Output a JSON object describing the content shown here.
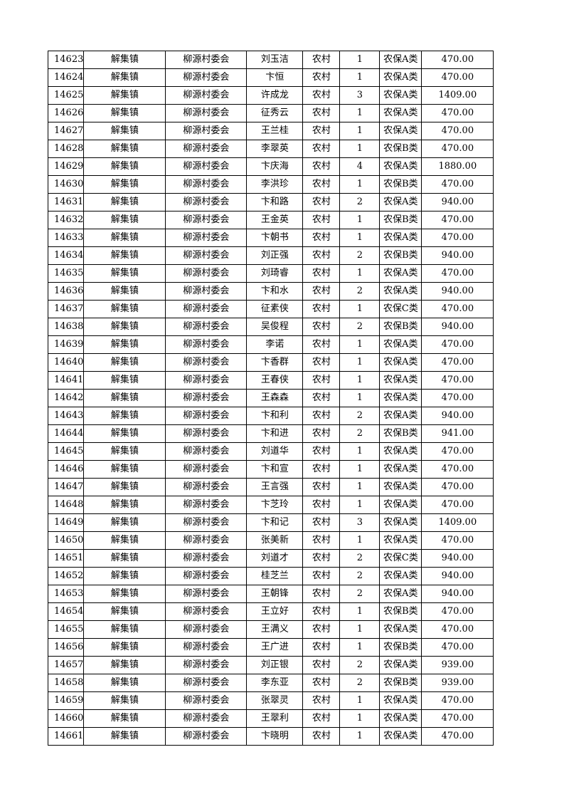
{
  "table": {
    "rows": [
      [
        "14623",
        "解集镇",
        "柳源村委会",
        "刘玉洁",
        "农村",
        "1",
        "农保A类",
        "470.00"
      ],
      [
        "14624",
        "解集镇",
        "柳源村委会",
        "卞恒",
        "农村",
        "1",
        "农保A类",
        "470.00"
      ],
      [
        "14625",
        "解集镇",
        "柳源村委会",
        "许成龙",
        "农村",
        "3",
        "农保A类",
        "1409.00"
      ],
      [
        "14626",
        "解集镇",
        "柳源村委会",
        "征秀云",
        "农村",
        "1",
        "农保A类",
        "470.00"
      ],
      [
        "14627",
        "解集镇",
        "柳源村委会",
        "王兰桂",
        "农村",
        "1",
        "农保A类",
        "470.00"
      ],
      [
        "14628",
        "解集镇",
        "柳源村委会",
        "李翠英",
        "农村",
        "1",
        "农保B类",
        "470.00"
      ],
      [
        "14629",
        "解集镇",
        "柳源村委会",
        "卞庆海",
        "农村",
        "4",
        "农保A类",
        "1880.00"
      ],
      [
        "14630",
        "解集镇",
        "柳源村委会",
        "李洪珍",
        "农村",
        "1",
        "农保B类",
        "470.00"
      ],
      [
        "14631",
        "解集镇",
        "柳源村委会",
        "卞和路",
        "农村",
        "2",
        "农保A类",
        "940.00"
      ],
      [
        "14632",
        "解集镇",
        "柳源村委会",
        "王金英",
        "农村",
        "1",
        "农保B类",
        "470.00"
      ],
      [
        "14633",
        "解集镇",
        "柳源村委会",
        "卞朝书",
        "农村",
        "1",
        "农保A类",
        "470.00"
      ],
      [
        "14634",
        "解集镇",
        "柳源村委会",
        "刘正强",
        "农村",
        "2",
        "农保B类",
        "940.00"
      ],
      [
        "14635",
        "解集镇",
        "柳源村委会",
        "刘琦睿",
        "农村",
        "1",
        "农保A类",
        "470.00"
      ],
      [
        "14636",
        "解集镇",
        "柳源村委会",
        "卞和水",
        "农村",
        "2",
        "农保A类",
        "940.00"
      ],
      [
        "14637",
        "解集镇",
        "柳源村委会",
        "征素侠",
        "农村",
        "1",
        "农保C类",
        "470.00"
      ],
      [
        "14638",
        "解集镇",
        "柳源村委会",
        "吴俊程",
        "农村",
        "2",
        "农保B类",
        "940.00"
      ],
      [
        "14639",
        "解集镇",
        "柳源村委会",
        "李诺",
        "农村",
        "1",
        "农保A类",
        "470.00"
      ],
      [
        "14640",
        "解集镇",
        "柳源村委会",
        "卞香群",
        "农村",
        "1",
        "农保A类",
        "470.00"
      ],
      [
        "14641",
        "解集镇",
        "柳源村委会",
        "王春侠",
        "农村",
        "1",
        "农保A类",
        "470.00"
      ],
      [
        "14642",
        "解集镇",
        "柳源村委会",
        "王森森",
        "农村",
        "1",
        "农保A类",
        "470.00"
      ],
      [
        "14643",
        "解集镇",
        "柳源村委会",
        "卞和利",
        "农村",
        "2",
        "农保A类",
        "940.00"
      ],
      [
        "14644",
        "解集镇",
        "柳源村委会",
        "卞和进",
        "农村",
        "2",
        "农保B类",
        "941.00"
      ],
      [
        "14645",
        "解集镇",
        "柳源村委会",
        "刘道华",
        "农村",
        "1",
        "农保A类",
        "470.00"
      ],
      [
        "14646",
        "解集镇",
        "柳源村委会",
        "卞和宣",
        "农村",
        "1",
        "农保A类",
        "470.00"
      ],
      [
        "14647",
        "解集镇",
        "柳源村委会",
        "王言强",
        "农村",
        "1",
        "农保A类",
        "470.00"
      ],
      [
        "14648",
        "解集镇",
        "柳源村委会",
        "卞芝玲",
        "农村",
        "1",
        "农保A类",
        "470.00"
      ],
      [
        "14649",
        "解集镇",
        "柳源村委会",
        "卞和记",
        "农村",
        "3",
        "农保A类",
        "1409.00"
      ],
      [
        "14650",
        "解集镇",
        "柳源村委会",
        "张美新",
        "农村",
        "1",
        "农保A类",
        "470.00"
      ],
      [
        "14651",
        "解集镇",
        "柳源村委会",
        "刘道才",
        "农村",
        "2",
        "农保C类",
        "940.00"
      ],
      [
        "14652",
        "解集镇",
        "柳源村委会",
        "桂芝兰",
        "农村",
        "2",
        "农保A类",
        "940.00"
      ],
      [
        "14653",
        "解集镇",
        "柳源村委会",
        "王朝锋",
        "农村",
        "2",
        "农保A类",
        "940.00"
      ],
      [
        "14654",
        "解集镇",
        "柳源村委会",
        "王立好",
        "农村",
        "1",
        "农保B类",
        "470.00"
      ],
      [
        "14655",
        "解集镇",
        "柳源村委会",
        "王满义",
        "农村",
        "1",
        "农保A类",
        "470.00"
      ],
      [
        "14656",
        "解集镇",
        "柳源村委会",
        "王广进",
        "农村",
        "1",
        "农保B类",
        "470.00"
      ],
      [
        "14657",
        "解集镇",
        "柳源村委会",
        "刘正银",
        "农村",
        "2",
        "农保A类",
        "939.00"
      ],
      [
        "14658",
        "解集镇",
        "柳源村委会",
        "李东亚",
        "农村",
        "2",
        "农保B类",
        "939.00"
      ],
      [
        "14659",
        "解集镇",
        "柳源村委会",
        "张翠灵",
        "农村",
        "1",
        "农保A类",
        "470.00"
      ],
      [
        "14660",
        "解集镇",
        "柳源村委会",
        "王翠利",
        "农村",
        "1",
        "农保A类",
        "470.00"
      ],
      [
        "14661",
        "解集镇",
        "柳源村委会",
        "卞晓明",
        "农村",
        "1",
        "农保A类",
        "470.00"
      ]
    ]
  }
}
